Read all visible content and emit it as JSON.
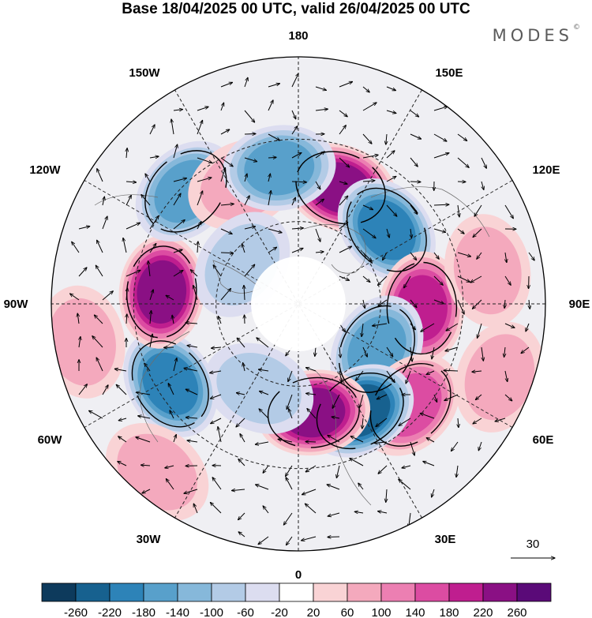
{
  "title": "Base 18/04/2025 00 UTC, valid 26/04/2025 00 UTC",
  "brand": "MODES",
  "brand_mark": "©",
  "longitude_labels": {
    "top": "180",
    "bottom": "0",
    "left": "90W",
    "right": "90E",
    "upper_left_1": "150W",
    "upper_left_2": "120W",
    "lower_left_1": "60W",
    "lower_left_2": "30W",
    "upper_right_1": "150E",
    "upper_right_2": "120E",
    "lower_right_1": "60E",
    "lower_right_2": "30E"
  },
  "reference_vector": {
    "label": "30"
  },
  "colorbar": {
    "colors": [
      "#0d3a5c",
      "#17618f",
      "#2d83b8",
      "#58a0cb",
      "#86b8da",
      "#b3cbe6",
      "#dcddf0",
      "#ffffff",
      "#f9d3d5",
      "#f4a9bd",
      "#ec7fb2",
      "#dc4ca2",
      "#bf1e8f",
      "#8a1084",
      "#5a0a78"
    ],
    "tick_labels": [
      "-260",
      "-220",
      "-180",
      "-140",
      "-100",
      "-60",
      "-20",
      "20",
      "60",
      "100",
      "140",
      "180",
      "220",
      "260"
    ]
  },
  "anomaly_centers": [
    {
      "lon": 160,
      "colat": 45,
      "value": 200
    },
    {
      "lon": 130,
      "colat": 42,
      "value": -190
    },
    {
      "lon": 88,
      "colat": 45,
      "value": 170
    },
    {
      "lon": 60,
      "colat": 33,
      "value": -130
    },
    {
      "lon": 48,
      "colat": 55,
      "value": 140
    },
    {
      "lon": 30,
      "colat": 45,
      "value": -220
    },
    {
      "lon": 8,
      "colat": 40,
      "value": 230
    },
    {
      "lon": -25,
      "colat": 34,
      "value": -70
    },
    {
      "lon": -58,
      "colat": 55,
      "value": -190
    },
    {
      "lon": -95,
      "colat": 50,
      "value": 230
    },
    {
      "lon": -135,
      "colat": 58,
      "value": -150
    },
    {
      "lon": -155,
      "colat": 48,
      "value": 70
    },
    {
      "lon": -172,
      "colat": 50,
      "value": -120
    },
    {
      "lon": -125,
      "colat": 25,
      "value": -50
    },
    {
      "lon": 100,
      "colat": 70,
      "value": 60
    },
    {
      "lon": -80,
      "colat": 80,
      "value": 60
    },
    {
      "lon": 70,
      "colat": 78,
      "value": 40
    },
    {
      "lon": -40,
      "colat": 80,
      "value": 60
    }
  ]
}
